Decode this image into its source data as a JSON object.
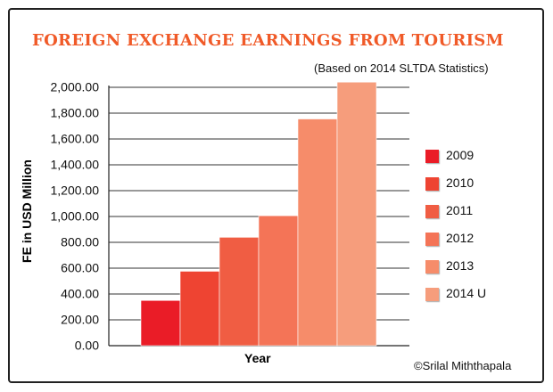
{
  "chart_data": {
    "type": "bar",
    "title": "FOREIGN EXCHANGE EARNINGS FROM TOURISM",
    "subtitle": "(Based on 2014 SLTDA Statistics)",
    "xlabel": "Year",
    "ylabel": "FE in USD Million",
    "categories": [
      "2009",
      "2010",
      "2011",
      "2012",
      "2013",
      "2014 U"
    ],
    "values": [
      350,
      576,
      839,
      1006,
      1755,
      2040
    ],
    "ylim": [
      0,
      2000
    ],
    "yticks": [
      "0.00",
      "200.00",
      "400.00",
      "600.00",
      "800.00",
      "1,000.00",
      "1,200.00",
      "1,400.00",
      "1,600.00",
      "1,800.00",
      "2,000.00"
    ],
    "grid": true,
    "legend": "right",
    "colors": [
      "#ea1c27",
      "#ee4432",
      "#f05d43",
      "#f47457",
      "#f68c6a",
      "#f69d7c"
    ],
    "title_color": "#f05a28",
    "credit": "©Srilal Miththapala"
  }
}
